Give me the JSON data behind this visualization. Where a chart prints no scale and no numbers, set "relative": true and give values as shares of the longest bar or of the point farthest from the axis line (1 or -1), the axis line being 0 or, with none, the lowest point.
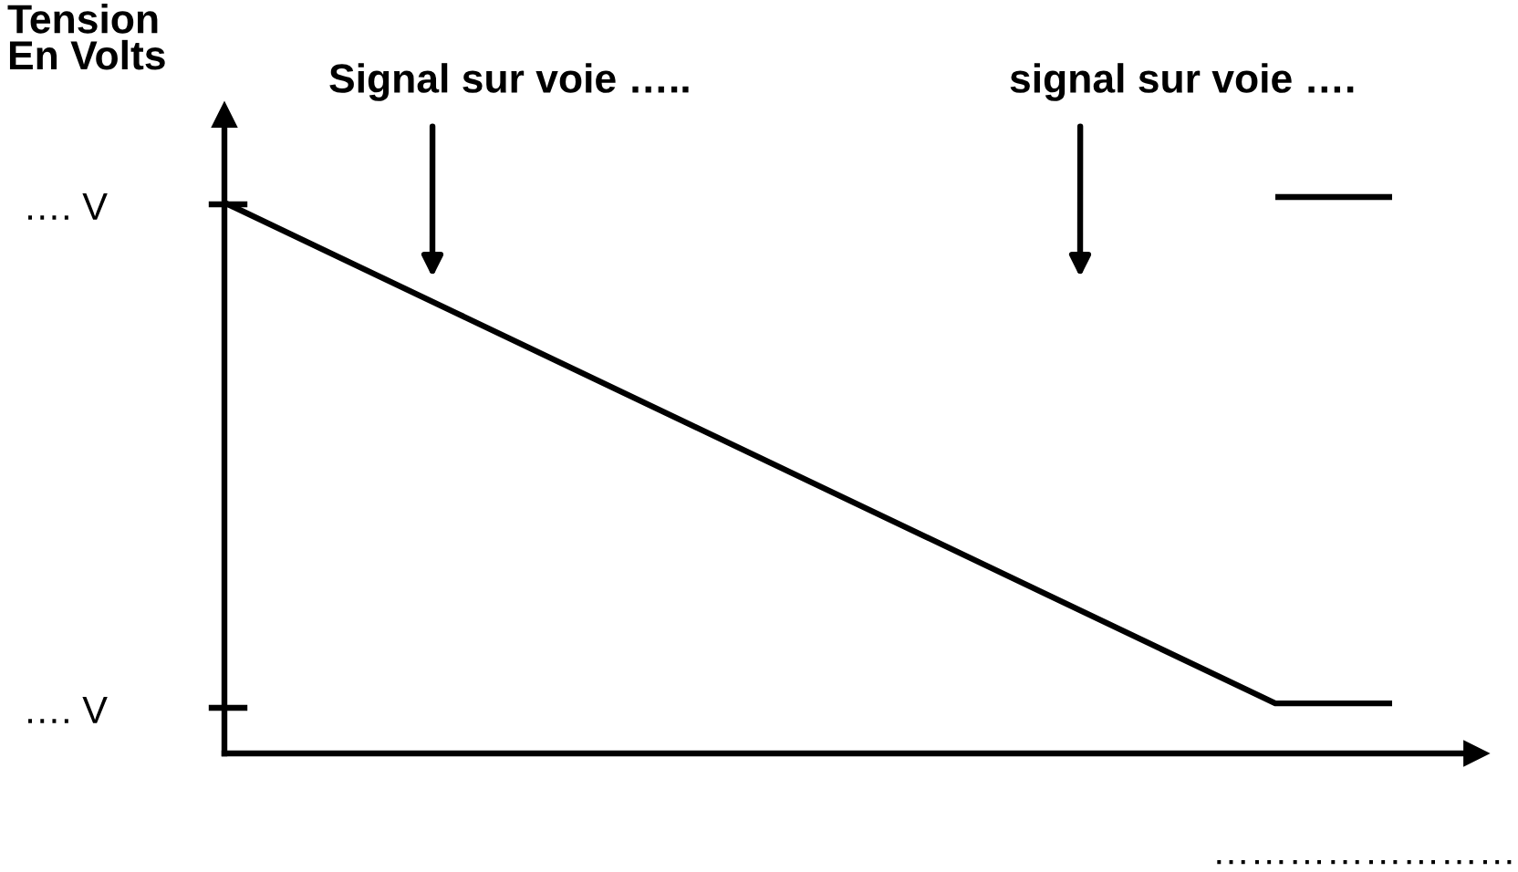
{
  "chart_data": {
    "type": "line",
    "relative": true,
    "line_style": "solid",
    "ylabel": "Tension\nEn Volts",
    "xlabel": "……………………",
    "categories": [
      null,
      null,
      null,
      null,
      null,
      null,
      null,
      null,
      null,
      null,
      null
    ],
    "series": [
      {
        "color": "#000000",
        "values": [
          0.99,
          0.89,
          0.79,
          0.69,
          0.59,
          0.49,
          0.39,
          0.29,
          0.19,
          0.09,
          0.09
        ]
      },
      {
        "color": "#000000",
        "values": [
          null,
          null,
          null,
          null,
          null,
          null,
          null,
          null,
          null,
          1,
          1
        ]
      }
    ],
    "annotations": [
      "…. V",
      "…. V",
      "Signal sur voie …..",
      "signal sur voie …."
    ]
  }
}
